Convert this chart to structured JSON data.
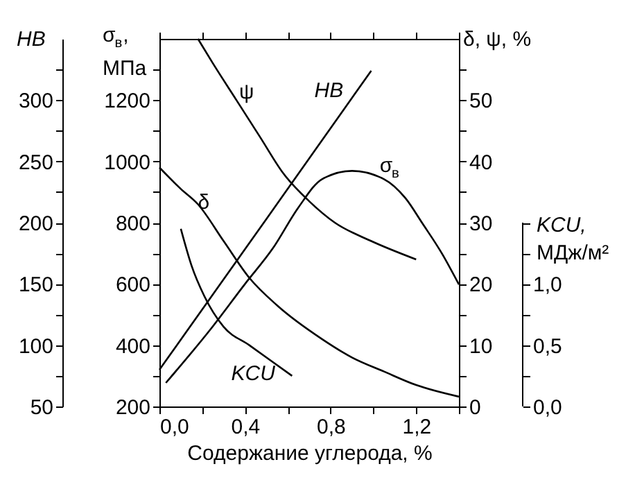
{
  "chart_data": [
    {
      "type": "line",
      "xlabel": "Содержание углерода, %",
      "ylabel": "σ$_{в}$, МПа",
      "y2label": "δ, ψ, %",
      "y3label": "HB",
      "xlim": [
        0,
        1.4
      ],
      "xticks": [
        {
          "value": 0,
          "label": "0,0"
        },
        {
          "value": 0.2,
          "label": null
        },
        {
          "value": 0.4,
          "label": "0,4"
        },
        {
          "value": 0.6,
          "label": null
        },
        {
          "value": 0.8,
          "label": "0,8"
        },
        {
          "value": 1.0,
          "label": null
        },
        {
          "value": 1.2,
          "label": "1,2"
        },
        {
          "value": 1.4,
          "label": null
        }
      ],
      "ylim": [
        200,
        1400
      ],
      "yticks": [
        200,
        {
          "value": 300,
          "label": null
        },
        400,
        {
          "value": 500,
          "label": null
        },
        600,
        {
          "value": 700,
          "label": null
        },
        800,
        {
          "value": 900,
          "label": null
        },
        1000,
        {
          "value": 1100,
          "label": null
        },
        1200,
        {
          "value": 1300,
          "label": null
        }
      ],
      "y2lim": [
        0,
        60
      ],
      "y2ticks": [
        0,
        {
          "value": 5,
          "label": null
        },
        10,
        {
          "value": 15,
          "label": null
        },
        20,
        {
          "value": 25,
          "label": null
        },
        30,
        {
          "value": 35,
          "label": null
        },
        40,
        {
          "value": 45,
          "label": null
        },
        50,
        {
          "value": 55,
          "label": null
        }
      ],
      "y3lim": [
        50,
        350
      ],
      "y3ticks": [
        50,
        {
          "value": 75,
          "label": null
        },
        100,
        {
          "value": 125,
          "label": null
        },
        150,
        {
          "value": 175,
          "label": null
        },
        200,
        {
          "value": 225,
          "label": null
        },
        250,
        {
          "value": 275,
          "label": null
        },
        300,
        {
          "value": 325,
          "label": null
        }
      ],
      "grid": false,
      "line_style": "solid",
      "series": [
        {
          "name": "σ$_{в}$",
          "color": "#000000",
          "axis": "y",
          "x": [
            0.03,
            0.24,
            0.4,
            0.53,
            0.65,
            0.76,
            0.9,
            1.05,
            1.15,
            1.23,
            1.32,
            1.4
          ],
          "values": [
            277,
            453,
            600,
            716,
            850,
            942,
            969,
            942,
            880,
            797,
            700,
            598
          ]
        },
        {
          "name": "HB",
          "color": "#000000",
          "axis": "y3",
          "x": [
            0.0,
            0.5,
            0.99
          ],
          "values": [
            80,
            203,
            324
          ]
        },
        {
          "name": "ψ",
          "color": "#000000",
          "axis": "y2",
          "x": [
            0.18,
            0.25,
            0.36,
            0.47,
            0.58,
            0.7,
            0.82,
            0.99,
            1.2
          ],
          "values": [
            60,
            56,
            50,
            44,
            38,
            33.5,
            30,
            27,
            24
          ]
        },
        {
          "name": "δ",
          "color": "#000000",
          "axis": "y2",
          "x": [
            0.0,
            0.1,
            0.18,
            0.3,
            0.42,
            0.55,
            0.76,
            0.9,
            1.05,
            1.2,
            1.4
          ],
          "values": [
            39,
            35.5,
            33,
            27,
            21,
            16.5,
            11,
            8,
            5.7,
            3.5,
            1.6
          ]
        }
      ]
    },
    {
      "type": "line",
      "ylabel": "KCU, МДж/м²",
      "xlim": [
        0,
        1.4
      ],
      "xticks": [
        {
          "value": 0,
          "label": null
        },
        {
          "value": 0.2,
          "label": null
        },
        {
          "value": 0.4,
          "label": null
        },
        {
          "value": 0.6,
          "label": null
        },
        {
          "value": 0.8,
          "label": null
        },
        {
          "value": 1.0,
          "label": null
        },
        {
          "value": 1.2,
          "label": null
        },
        {
          "value": 1.4,
          "label": null
        }
      ],
      "ylim": [
        0,
        3.0
      ],
      "yticks": [
        {
          "value": 0,
          "label": "0,0"
        },
        {
          "value": 0.25,
          "label": null
        },
        {
          "value": 0.5,
          "label": "0,5"
        },
        {
          "value": 0.75,
          "label": null
        },
        {
          "value": 1.0,
          "label": "1,0"
        },
        {
          "value": 1.25,
          "label": null
        },
        {
          "value": 1.5,
          "label": null
        }
      ],
      "tick_labels": "y",
      "grid": false,
      "line_style": "solid",
      "series": [
        {
          "name": "KCU",
          "color": "#000000",
          "x": [
            0.1,
            0.15,
            0.21,
            0.3,
            0.42,
            0.62
          ],
          "values": [
            1.45,
            1.15,
            0.9,
            0.65,
            0.5,
            0.25
          ]
        }
      ]
    }
  ]
}
